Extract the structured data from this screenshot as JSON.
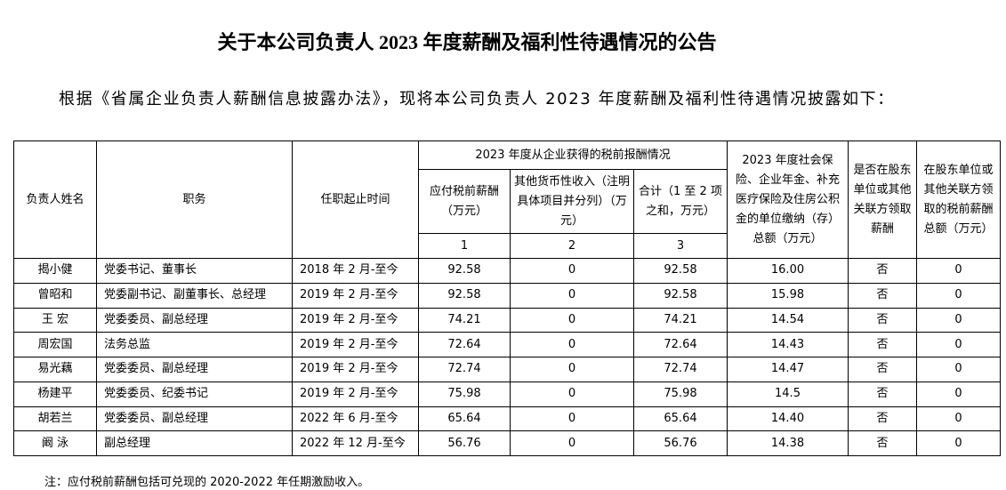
{
  "title": "关于本公司负责人 2023 年度薪酬及福利性待遇情况的公告",
  "intro": "根据《省属企业负责人薪酬信息披露办法》，现将本公司负责人 2023 年度薪酬及福利性待遇情况披露如下：",
  "table": {
    "header": {
      "name": "负责人姓名",
      "position": "职务",
      "term": "任职起止时间",
      "pay_group": "2023 年度从企业获得的税前报酬情况",
      "pay_due": "应付税前薪酬（万元）",
      "pay_other": "其他货币性收入（注明具体项目并分列）（万元）",
      "pay_total": "合计（1 至 2 项之和，万元）",
      "col1": "1",
      "col2": "2",
      "col3": "3",
      "insurance": "2023 年度社会保险、企业年金、补充医疗保险及住房公积金的单位缴纳（存）总额（万元）",
      "shareholder_flag": "是否在股东单位或其他关联方领取薪酬",
      "shareholder_amount": "在股东单位或其他关联方领取的税前薪酬总额（万元）"
    },
    "rows": [
      [
        "揭小健",
        "党委书记、董事长",
        "2018 年 2 月-至今",
        "92.58",
        "0",
        "92.58",
        "16.00",
        "否",
        "0"
      ],
      [
        "曾昭和",
        "党委副书记、副董事长、总经理",
        "2019 年 2 月-至今",
        "92.58",
        "0",
        "92.58",
        "15.98",
        "否",
        "0"
      ],
      [
        "王 宏",
        "党委委员、副总经理",
        "2019 年 2 月-至今",
        "74.21",
        "0",
        "74.21",
        "14.54",
        "否",
        "0"
      ],
      [
        "周宏国",
        "法务总监",
        "2019 年 2 月-至今",
        "72.64",
        "0",
        "72.64",
        "14.43",
        "否",
        "0"
      ],
      [
        "易光藕",
        "党委委员、副总经理",
        "2019 年 2 月-至今",
        "72.74",
        "0",
        "72.74",
        "14.47",
        "否",
        "0"
      ],
      [
        "杨建平",
        "党委委员、纪委书记",
        "2019 年 2 月-至今",
        "75.98",
        "0",
        "75.98",
        "14.5",
        "否",
        "0"
      ],
      [
        "胡若兰",
        "党委委员、副总经理",
        "2022 年 6 月-至今",
        "65.64",
        "0",
        "65.64",
        "14.40",
        "否",
        "0"
      ],
      [
        "阚 泳",
        "副总经理",
        "2022 年 12 月-至今",
        "56.76",
        "0",
        "56.76",
        "14.38",
        "否",
        "0"
      ]
    ]
  },
  "note": "注：应付税前薪酬包括可兑现的 2020-2022 年任期激励收入。"
}
